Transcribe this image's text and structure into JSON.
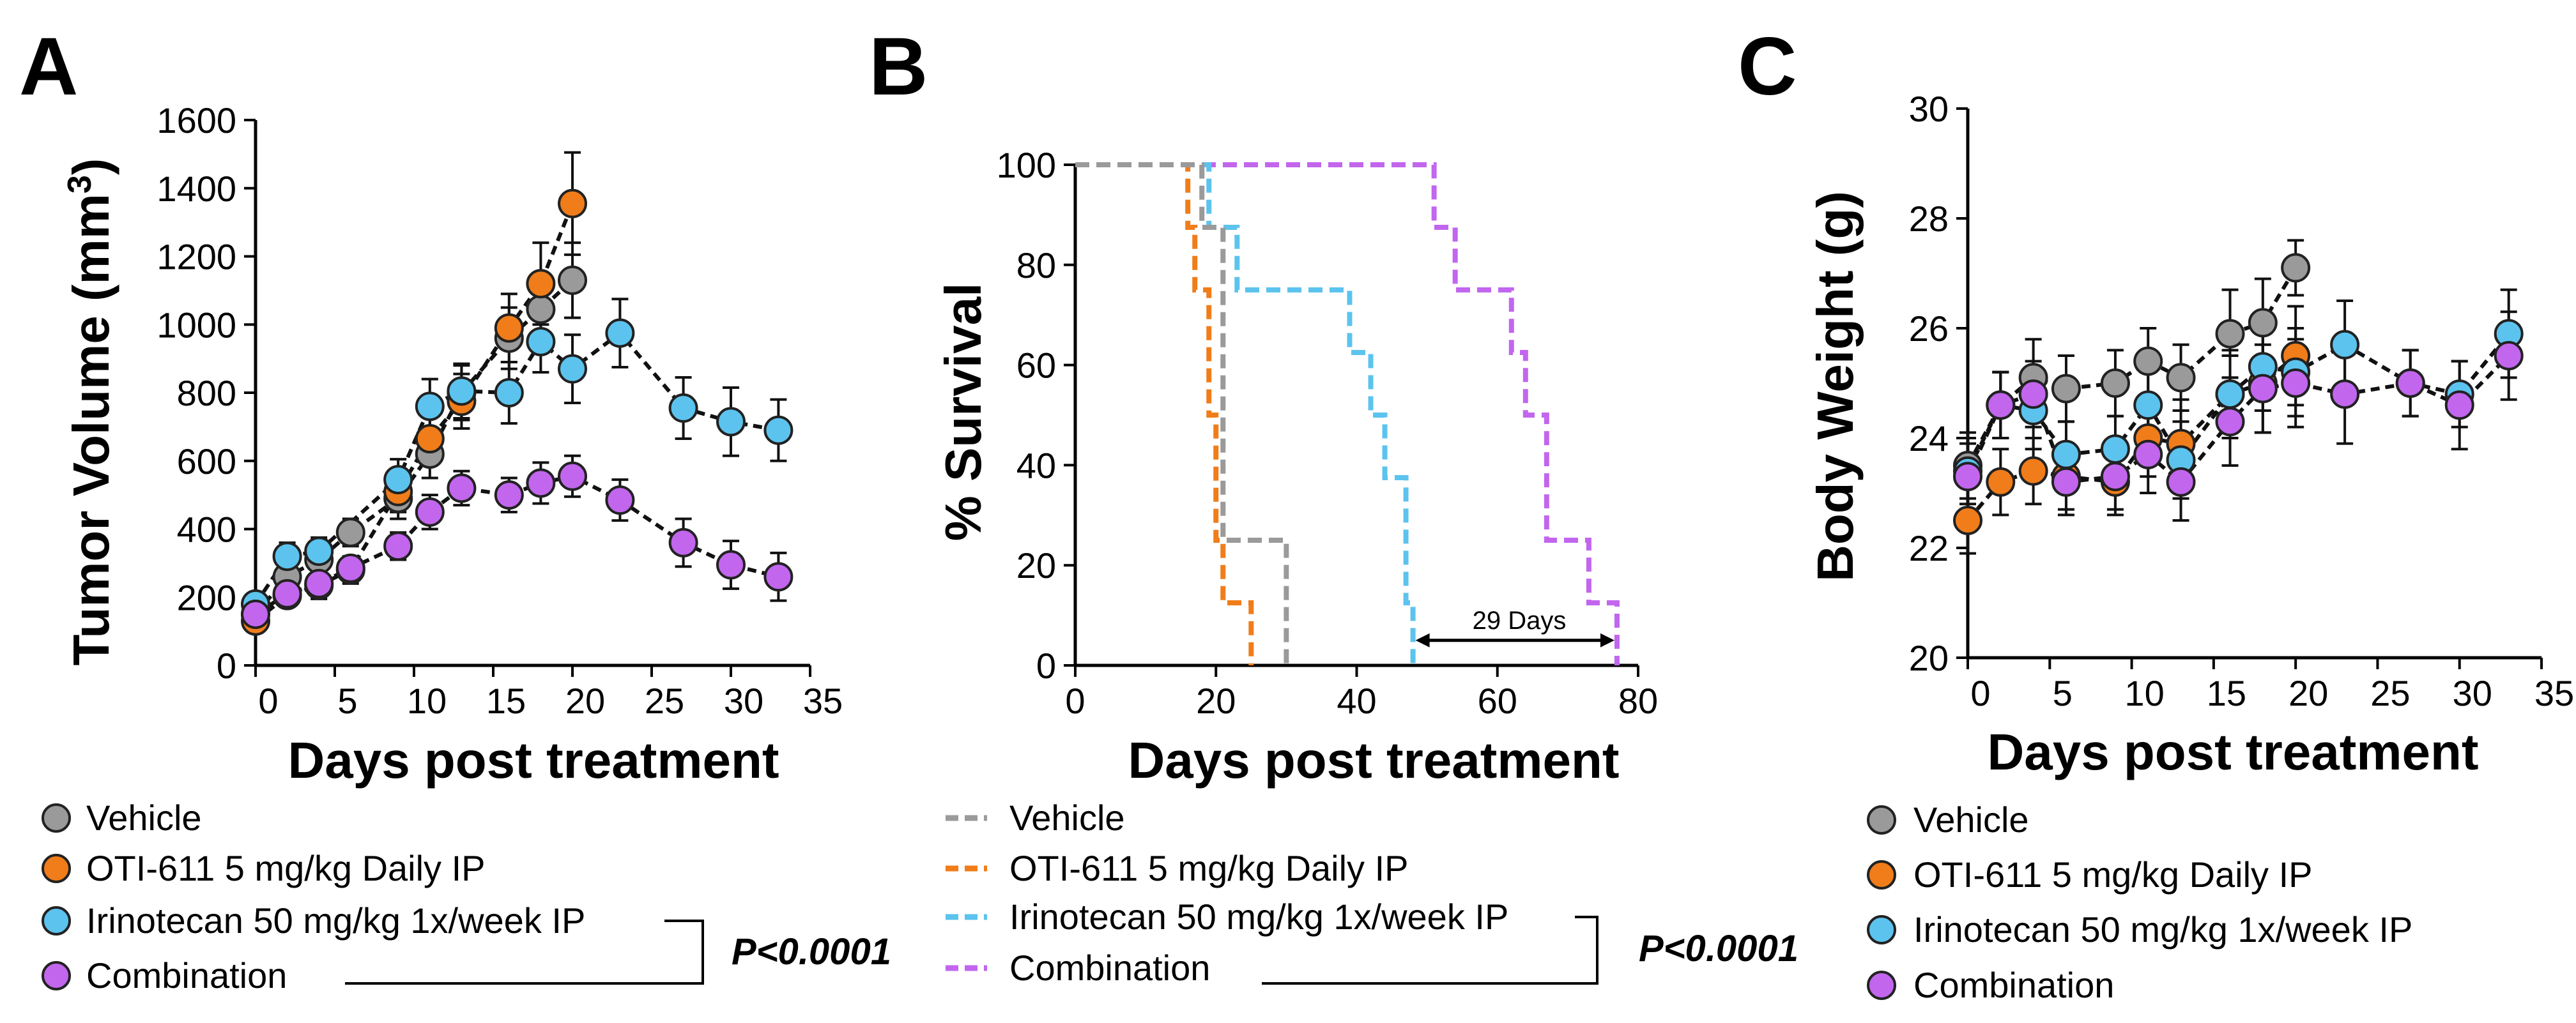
{
  "figure": {
    "panels": [
      "A",
      "B",
      "C"
    ]
  },
  "colors": {
    "Vehicle": "#9a9a9a",
    "OTI-611 5 mg/kg Daily IP": "#f07d1a",
    "Irinotecan 50 mg/kg 1x/week IP": "#5cc3ee",
    "Combination": "#c266ee"
  },
  "legend_entries": [
    "Vehicle",
    "OTI-611 5 mg/kg Daily IP",
    "Irinotecan 50 mg/kg 1x/week IP",
    "Combination"
  ],
  "significance": {
    "text": "P<0.0001"
  },
  "chart_data": [
    {
      "panel": "A",
      "type": "line",
      "xlabel": "Days post treatment",
      "ylabel_main": "Tumor Volume (mm",
      "ylabel_sup": "3",
      "ylabel_end": ")",
      "xlim": [
        0,
        35
      ],
      "ylim": [
        0,
        1600
      ],
      "xticks": [
        "0",
        "5",
        "10",
        "15",
        "20",
        "25",
        "30",
        "35"
      ],
      "yticks": [
        "0",
        "200",
        "400",
        "600",
        "800",
        "1000",
        "1200",
        "1400",
        "1600"
      ],
      "series": [
        {
          "name": "Vehicle",
          "x": [
            0,
            2,
            4,
            6,
            9,
            11,
            13,
            16,
            18,
            20
          ],
          "y": [
            150,
            260,
            310,
            390,
            490,
            620,
            800,
            960,
            1045,
            1130
          ],
          "err": [
            30,
            40,
            40,
            40,
            60,
            70,
            80,
            90,
            100,
            110
          ]
        },
        {
          "name": "OTI-611 5 mg/kg Daily IP",
          "x": [
            0,
            2,
            4,
            6,
            9,
            11,
            13,
            16,
            18,
            20
          ],
          "y": [
            130,
            205,
            235,
            280,
            510,
            665,
            775,
            990,
            1120,
            1355
          ],
          "err": [
            30,
            30,
            40,
            40,
            60,
            70,
            80,
            100,
            120,
            150
          ]
        },
        {
          "name": "Irinotecan 50 mg/kg 1x/week IP",
          "x": [
            0,
            2,
            4,
            9,
            11,
            13,
            16,
            18,
            20,
            23,
            27,
            30,
            33
          ],
          "y": [
            180,
            320,
            335,
            545,
            760,
            805,
            800,
            950,
            870,
            975,
            755,
            715,
            690
          ],
          "err": [
            30,
            40,
            40,
            60,
            80,
            80,
            90,
            90,
            100,
            100,
            90,
            100,
            90
          ]
        },
        {
          "name": "Combination",
          "x": [
            0,
            2,
            4,
            6,
            9,
            11,
            13,
            16,
            18,
            20,
            23,
            27,
            30,
            33
          ],
          "y": [
            150,
            210,
            240,
            285,
            350,
            450,
            520,
            500,
            535,
            555,
            485,
            360,
            295,
            260
          ],
          "err": [
            30,
            30,
            30,
            30,
            40,
            50,
            50,
            50,
            60,
            60,
            60,
            70,
            70,
            70
          ]
        }
      ],
      "significance": {
        "between": [
          "Irinotecan 50 mg/kg 1x/week IP",
          "Combination"
        ],
        "text": "P<0.0001"
      }
    },
    {
      "panel": "B",
      "type": "step",
      "xlabel": "Days post treatment",
      "ylabel": "% Survival",
      "xlim": [
        0,
        80
      ],
      "ylim": [
        0,
        100
      ],
      "xticks": [
        "0",
        "20",
        "40",
        "60",
        "80"
      ],
      "yticks": [
        "0",
        "20",
        "40",
        "60",
        "80",
        "100"
      ],
      "series": [
        {
          "name": "Vehicle",
          "x": [
            0,
            18,
            18,
            21,
            21,
            30,
            30
          ],
          "y": [
            100,
            100,
            87.5,
            87.5,
            25,
            25,
            0
          ]
        },
        {
          "name": "OTI-611 5 mg/kg Daily IP",
          "x": [
            0,
            16,
            16,
            17,
            17,
            19,
            19,
            20,
            20,
            21,
            21,
            23,
            23,
            25,
            25
          ],
          "y": [
            100,
            100,
            87.5,
            87.5,
            75,
            75,
            50,
            50,
            25,
            25,
            12.5,
            12.5,
            12.5,
            12.5,
            0
          ]
        },
        {
          "name": "Irinotecan 50 mg/kg 1x/week IP",
          "x": [
            0,
            19,
            19,
            22,
            22,
            23,
            23,
            39,
            39,
            42,
            42,
            44,
            44,
            47,
            47,
            48,
            48
          ],
          "y": [
            100,
            100,
            87.5,
            87.5,
            87.5,
            87.5,
            75,
            75,
            62.5,
            62.5,
            50,
            50,
            37.5,
            37.5,
            12.5,
            12.5,
            0
          ]
        },
        {
          "name": "Combination",
          "x": [
            0,
            51,
            51,
            54,
            54,
            62,
            62,
            64,
            64,
            67,
            67,
            73,
            73,
            75,
            75,
            77,
            77
          ],
          "y": [
            100,
            100,
            87.5,
            87.5,
            75,
            75,
            62.5,
            62.5,
            50,
            50,
            25,
            25,
            12.5,
            12.5,
            12.5,
            12.5,
            0
          ]
        }
      ],
      "annotation": {
        "text": "29 Days",
        "x_from": 48,
        "x_to": 77,
        "y": 5
      },
      "significance": {
        "between": [
          "Irinotecan 50 mg/kg 1x/week IP",
          "Combination"
        ],
        "text": "P<0.0001"
      }
    },
    {
      "panel": "C",
      "type": "line",
      "xlabel": "Days post treatment",
      "ylabel": "Body Weight (g)",
      "xlim": [
        0,
        35
      ],
      "ylim": [
        20,
        30
      ],
      "xticks": [
        "0",
        "5",
        "10",
        "15",
        "20",
        "25",
        "30",
        "35"
      ],
      "yticks": [
        "20",
        "22",
        "24",
        "26",
        "28",
        "30"
      ],
      "series": [
        {
          "name": "Vehicle",
          "x": [
            0,
            2,
            4,
            6,
            9,
            11,
            13,
            16,
            18,
            20
          ],
          "y": [
            23.5,
            24.6,
            25.1,
            24.9,
            25.0,
            25.4,
            25.1,
            25.9,
            26.1,
            27.1
          ],
          "err": [
            0.6,
            0.6,
            0.7,
            0.6,
            0.6,
            0.6,
            0.6,
            0.8,
            0.8,
            0.5
          ]
        },
        {
          "name": "OTI-611 5 mg/kg Daily IP",
          "x": [
            0,
            2,
            4,
            6,
            9,
            11,
            13,
            16,
            18,
            20
          ],
          "y": [
            22.5,
            23.2,
            23.4,
            23.3,
            23.2,
            24.0,
            23.9,
            24.8,
            25.0,
            25.5
          ],
          "err": [
            0.6,
            0.6,
            0.6,
            0.6,
            0.6,
            0.7,
            0.8,
            0.8,
            0.9,
            0.9
          ]
        },
        {
          "name": "Irinotecan 50 mg/kg 1x/week IP",
          "x": [
            0,
            2,
            4,
            6,
            9,
            11,
            13,
            16,
            18,
            20,
            23,
            27,
            30,
            33
          ],
          "y": [
            23.4,
            24.6,
            24.5,
            23.7,
            23.8,
            24.6,
            23.6,
            24.8,
            25.3,
            25.2,
            25.7,
            25.0,
            24.8,
            25.9
          ],
          "err": [
            0.6,
            0.6,
            0.7,
            0.6,
            0.6,
            0.6,
            0.7,
            0.7,
            0.8,
            0.8,
            0.8,
            0.6,
            0.6,
            0.8
          ]
        },
        {
          "name": "Combination",
          "x": [
            0,
            2,
            4,
            6,
            9,
            11,
            13,
            16,
            18,
            20,
            23,
            27,
            30,
            33
          ],
          "y": [
            23.3,
            24.6,
            24.8,
            23.2,
            23.3,
            23.7,
            23.2,
            24.3,
            24.9,
            25.0,
            24.8,
            25.0,
            24.6,
            25.5
          ],
          "err": [
            0.6,
            0.6,
            0.6,
            0.6,
            0.6,
            0.7,
            0.7,
            0.8,
            0.8,
            0.8,
            0.9,
            0.6,
            0.8,
            0.8
          ]
        }
      ]
    }
  ]
}
